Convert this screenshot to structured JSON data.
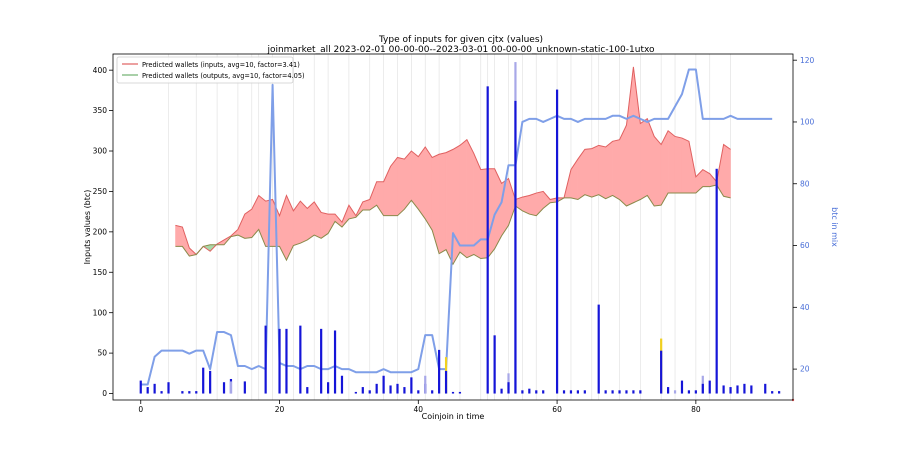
{
  "chart_data": {
    "type": "bar",
    "title": "Type of inputs for given cjtx (values)",
    "subtitle": "joinmarket_all 2023-02-01 00-00-00--2023-03-01 00-00-00_unknown-static-100-1utxo",
    "xlabel": "Coinjoin in time",
    "ylabel": "Inputs values (btc)",
    "y2label": "btc in mix",
    "xlim": [
      -4,
      94
    ],
    "ylim": [
      -8,
      420
    ],
    "y2lim": [
      10,
      122
    ],
    "xticks": [
      0,
      20,
      40,
      60,
      80
    ],
    "yticks": [
      0,
      50,
      100,
      150,
      200,
      250,
      300,
      350,
      400
    ],
    "y2ticks": [
      20,
      40,
      60,
      80,
      100,
      120
    ],
    "legend_position": "upper-left",
    "colors": {
      "inputs": "#e06060",
      "inputs_fill": "#ffaaaa",
      "outputs": "#6fb06f",
      "outputs_fill": "#a8d8a8",
      "btc_in_mix": "#7f9fe8",
      "bars_primary": "#1515d8",
      "bars_faded": "#a8a8e8",
      "bars_yellow": "#f0d020",
      "y2_axis": "#4a6fd8"
    },
    "series": [
      {
        "name": "Predicted wallets (inputs, avg=10, factor=3.41)",
        "x": [
          5,
          6,
          7,
          8,
          9,
          10,
          11,
          12,
          13,
          14,
          15,
          16,
          17,
          18,
          19,
          20,
          21,
          22,
          23,
          24,
          25,
          26,
          27,
          28,
          29,
          30,
          31,
          32,
          33,
          34,
          35,
          36,
          37,
          38,
          39,
          40,
          41,
          42,
          43,
          44,
          45,
          46,
          47,
          48,
          49,
          50,
          51,
          52,
          53,
          54,
          55,
          56,
          57,
          58,
          59,
          60,
          61,
          62,
          63,
          64,
          65,
          66,
          67,
          68,
          69,
          70,
          71,
          72,
          73,
          74,
          75,
          76,
          77,
          78,
          79,
          80,
          81,
          82,
          83,
          84,
          85
        ],
        "values": [
          208,
          206,
          180,
          172,
          182,
          176,
          185,
          190,
          195,
          203,
          222,
          228,
          245,
          238,
          240,
          220,
          245,
          226,
          238,
          229,
          237,
          224,
          222,
          222,
          212,
          233,
          220,
          237,
          240,
          262,
          262,
          281,
          292,
          290,
          300,
          293,
          305,
          292,
          296,
          298,
          302,
          307,
          314,
          297,
          277,
          278,
          278,
          260,
          266,
          240,
          243,
          245,
          248,
          250,
          240,
          242,
          242,
          277,
          290,
          302,
          303,
          307,
          305,
          312,
          314,
          332,
          404,
          334,
          340,
          318,
          308,
          325,
          318,
          316,
          312,
          268,
          277,
          272,
          262,
          308,
          302
        ]
      },
      {
        "name": "Predicted wallets (outputs, avg=10, factor=4.05)",
        "x": [
          5,
          6,
          7,
          8,
          9,
          10,
          11,
          12,
          13,
          14,
          15,
          16,
          17,
          18,
          19,
          20,
          21,
          22,
          23,
          24,
          25,
          26,
          27,
          28,
          29,
          30,
          31,
          32,
          33,
          34,
          35,
          36,
          37,
          38,
          39,
          40,
          41,
          42,
          43,
          44,
          45,
          46,
          47,
          48,
          49,
          50,
          51,
          52,
          53,
          54,
          55,
          56,
          57,
          58,
          59,
          60,
          61,
          62,
          63,
          64,
          65,
          66,
          67,
          68,
          69,
          70,
          71,
          72,
          73,
          74,
          75,
          76,
          77,
          78,
          79,
          80,
          81,
          82,
          83,
          84,
          85
        ],
        "values": [
          182,
          182,
          170,
          172,
          182,
          184,
          184,
          184,
          194,
          196,
          192,
          193,
          203,
          182,
          182,
          182,
          165,
          183,
          186,
          190,
          196,
          192,
          198,
          213,
          206,
          216,
          218,
          227,
          227,
          233,
          220,
          220,
          220,
          228,
          239,
          228,
          216,
          202,
          173,
          178,
          160,
          175,
          168,
          172,
          167,
          168,
          179,
          195,
          208,
          232,
          226,
          222,
          220,
          229,
          236,
          237,
          242,
          242,
          240,
          246,
          243,
          246,
          241,
          245,
          240,
          232,
          236,
          240,
          245,
          232,
          233,
          248,
          248,
          248,
          248,
          248,
          256,
          256,
          258,
          244,
          242
        ]
      },
      {
        "name": "btc in mix",
        "axis": "right",
        "x": [
          0,
          1,
          2,
          3,
          4,
          5,
          6,
          7,
          8,
          9,
          10,
          11,
          12,
          13,
          14,
          15,
          16,
          17,
          18,
          19,
          20,
          21,
          22,
          23,
          24,
          25,
          26,
          27,
          28,
          29,
          30,
          31,
          32,
          33,
          34,
          35,
          36,
          37,
          38,
          39,
          40,
          41,
          42,
          43,
          44,
          45,
          46,
          47,
          48,
          49,
          50,
          51,
          52,
          53,
          54,
          55,
          56,
          57,
          58,
          59,
          60,
          61,
          62,
          63,
          64,
          65,
          66,
          67,
          68,
          69,
          70,
          71,
          72,
          73,
          74,
          75,
          76,
          77,
          78,
          79,
          80,
          81,
          82,
          83,
          84,
          85,
          86,
          87,
          88,
          89,
          90,
          91
        ],
        "values": [
          15,
          15,
          24,
          26,
          26,
          26,
          26,
          25,
          26,
          26,
          20,
          32,
          32,
          31,
          21,
          21,
          20,
          21,
          20,
          112,
          22,
          21,
          21,
          20,
          21,
          21,
          20,
          20,
          21,
          20,
          20,
          19,
          19,
          19,
          19,
          20,
          19,
          19,
          19,
          19,
          20,
          31,
          31,
          20,
          20,
          64,
          60,
          60,
          60,
          62,
          62,
          70,
          74,
          86,
          86,
          100,
          101,
          101,
          100,
          101,
          102,
          101,
          101,
          100,
          101,
          101,
          101,
          101,
          102,
          102,
          101,
          102,
          101,
          100,
          101,
          101,
          101,
          105,
          109,
          117,
          117,
          101,
          101,
          101,
          101,
          102,
          101,
          101,
          101,
          101,
          101,
          101
        ]
      }
    ],
    "bars": [
      {
        "x": 0,
        "value": 16,
        "style": "primary"
      },
      {
        "x": 1,
        "value": 8,
        "style": "primary"
      },
      {
        "x": 2,
        "value": 12,
        "style": "primary"
      },
      {
        "x": 3,
        "value": 3,
        "style": "primary"
      },
      {
        "x": 4,
        "value": 14,
        "style": "primary"
      },
      {
        "x": 6,
        "value": 3,
        "style": "primary"
      },
      {
        "x": 7,
        "value": 3,
        "style": "primary"
      },
      {
        "x": 8,
        "value": 3,
        "style": "primary"
      },
      {
        "x": 9,
        "value": 32,
        "style": "primary"
      },
      {
        "x": 10,
        "value": 28,
        "style": "primary"
      },
      {
        "x": 12,
        "value": 14,
        "style": "primary"
      },
      {
        "x": 13,
        "value": 18,
        "style": "primary"
      },
      {
        "x": 13,
        "value": 15,
        "style": "faded"
      },
      {
        "x": 15,
        "value": 15,
        "style": "primary"
      },
      {
        "x": 18,
        "value": 84,
        "style": "primary"
      },
      {
        "x": 20,
        "value": 80,
        "style": "primary"
      },
      {
        "x": 21,
        "value": 80,
        "style": "primary"
      },
      {
        "x": 23,
        "value": 84,
        "style": "primary"
      },
      {
        "x": 24,
        "value": 8,
        "style": "primary"
      },
      {
        "x": 26,
        "value": 80,
        "style": "primary"
      },
      {
        "x": 27,
        "value": 14,
        "style": "primary"
      },
      {
        "x": 28,
        "value": 78,
        "style": "primary"
      },
      {
        "x": 29,
        "value": 22,
        "style": "primary"
      },
      {
        "x": 31,
        "value": 2,
        "style": "primary"
      },
      {
        "x": 32,
        "value": 8,
        "style": "primary"
      },
      {
        "x": 33,
        "value": 4,
        "style": "primary"
      },
      {
        "x": 34,
        "value": 12,
        "style": "primary"
      },
      {
        "x": 35,
        "value": 22,
        "style": "primary"
      },
      {
        "x": 36,
        "value": 10,
        "style": "primary"
      },
      {
        "x": 37,
        "value": 12,
        "style": "primary"
      },
      {
        "x": 38,
        "value": 8,
        "style": "primary"
      },
      {
        "x": 39,
        "value": 20,
        "style": "primary"
      },
      {
        "x": 40,
        "value": 4,
        "style": "primary"
      },
      {
        "x": 41,
        "value": 12,
        "style": "primary"
      },
      {
        "x": 41,
        "value": 22,
        "style": "faded"
      },
      {
        "x": 42,
        "value": 4,
        "style": "primary"
      },
      {
        "x": 43,
        "value": 54,
        "style": "primary"
      },
      {
        "x": 44,
        "value": 45,
        "style": "yellow"
      },
      {
        "x": 44,
        "value": 28,
        "style": "primary"
      },
      {
        "x": 45,
        "value": 2,
        "style": "primary"
      },
      {
        "x": 46,
        "value": 2,
        "style": "primary"
      },
      {
        "x": 50,
        "value": 380,
        "style": "primary"
      },
      {
        "x": 51,
        "value": 72,
        "style": "primary"
      },
      {
        "x": 52,
        "value": 6,
        "style": "primary"
      },
      {
        "x": 53,
        "value": 25,
        "style": "faded"
      },
      {
        "x": 53,
        "value": 14,
        "style": "primary"
      },
      {
        "x": 54,
        "value": 410,
        "style": "faded"
      },
      {
        "x": 54,
        "value": 362,
        "style": "primary"
      },
      {
        "x": 55,
        "value": 4,
        "style": "primary"
      },
      {
        "x": 56,
        "value": 6,
        "style": "primary"
      },
      {
        "x": 57,
        "value": 4,
        "style": "primary"
      },
      {
        "x": 58,
        "value": 4,
        "style": "primary"
      },
      {
        "x": 60,
        "value": 376,
        "style": "primary"
      },
      {
        "x": 61,
        "value": 4,
        "style": "primary"
      },
      {
        "x": 62,
        "value": 4,
        "style": "primary"
      },
      {
        "x": 63,
        "value": 4,
        "style": "primary"
      },
      {
        "x": 64,
        "value": 4,
        "style": "primary"
      },
      {
        "x": 66,
        "value": 110,
        "style": "primary"
      },
      {
        "x": 67,
        "value": 4,
        "style": "primary"
      },
      {
        "x": 68,
        "value": 4,
        "style": "primary"
      },
      {
        "x": 69,
        "value": 4,
        "style": "primary"
      },
      {
        "x": 70,
        "value": 4,
        "style": "primary"
      },
      {
        "x": 71,
        "value": 4,
        "style": "primary"
      },
      {
        "x": 72,
        "value": 4,
        "style": "primary"
      },
      {
        "x": 75,
        "value": 68,
        "style": "yellow"
      },
      {
        "x": 75,
        "value": 53,
        "style": "primary"
      },
      {
        "x": 76,
        "value": 8,
        "style": "primary"
      },
      {
        "x": 77,
        "value": 4,
        "style": "faded"
      },
      {
        "x": 78,
        "value": 16,
        "style": "primary"
      },
      {
        "x": 79,
        "value": 4,
        "style": "primary"
      },
      {
        "x": 80,
        "value": 4,
        "style": "primary"
      },
      {
        "x": 81,
        "value": 22,
        "style": "faded"
      },
      {
        "x": 81,
        "value": 12,
        "style": "primary"
      },
      {
        "x": 82,
        "value": 16,
        "style": "primary"
      },
      {
        "x": 83,
        "value": 278,
        "style": "primary"
      },
      {
        "x": 84,
        "value": 10,
        "style": "primary"
      },
      {
        "x": 85,
        "value": 8,
        "style": "primary"
      },
      {
        "x": 86,
        "value": 10,
        "style": "primary"
      },
      {
        "x": 87,
        "value": 12,
        "style": "primary"
      },
      {
        "x": 88,
        "value": 10,
        "style": "primary"
      },
      {
        "x": 90,
        "value": 12,
        "style": "primary"
      },
      {
        "x": 91,
        "value": 3,
        "style": "primary"
      },
      {
        "x": 92,
        "value": 3,
        "style": "primary"
      }
    ],
    "grid_verticals": [
      4,
      8,
      11,
      14,
      16,
      17,
      19,
      22,
      25,
      27,
      30,
      33,
      35,
      37,
      39,
      41,
      43,
      46,
      49,
      50,
      51,
      53,
      55,
      57,
      60,
      62,
      65,
      66,
      69,
      72,
      75,
      77,
      80,
      82,
      85
    ],
    "marker": {
      "x": 94,
      "value": -8,
      "color": "#e05050"
    }
  }
}
